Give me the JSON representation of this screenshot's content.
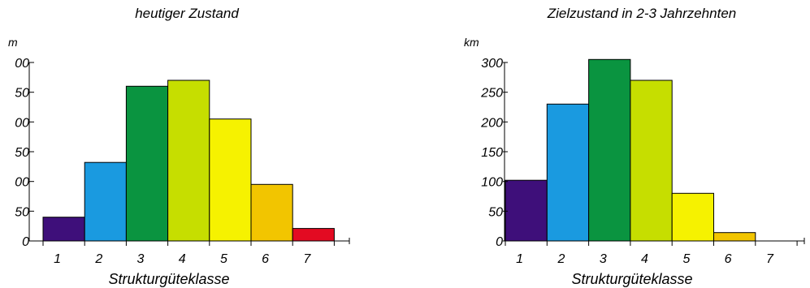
{
  "chart_data": [
    {
      "type": "bar",
      "title": "heutiger Zustand",
      "ylabel": "m",
      "xlabel": "Strukturgüteklasse",
      "categories": [
        "1",
        "2",
        "3",
        "4",
        "5",
        "6",
        "7"
      ],
      "values": [
        40,
        132,
        260,
        270,
        205,
        95,
        21
      ],
      "colors": [
        "#3e0f7a",
        "#1a9ae0",
        "#0a9440",
        "#c6de00",
        "#f6f200",
        "#f2c500",
        "#e30a22"
      ],
      "ylim": [
        0,
        300
      ],
      "yticks": [
        "0",
        "50",
        "00",
        "50",
        "00",
        "50",
        "00"
      ],
      "grid": false
    },
    {
      "type": "bar",
      "title": "Zielzustand in 2-3 Jahrzehnten",
      "ylabel": "km",
      "xlabel": "Strukturgüteklasse",
      "categories": [
        "1",
        "2",
        "3",
        "4",
        "5",
        "6",
        "7"
      ],
      "values": [
        102,
        230,
        305,
        270,
        80,
        14,
        0
      ],
      "colors": [
        "#3e0f7a",
        "#1a9ae0",
        "#0a9440",
        "#c6de00",
        "#f6f200",
        "#f2c500",
        "#e30a22"
      ],
      "ylim": [
        0,
        300
      ],
      "yticks": [
        "0",
        "50",
        "100",
        "150",
        "200",
        "250",
        "300"
      ],
      "grid": false
    }
  ]
}
